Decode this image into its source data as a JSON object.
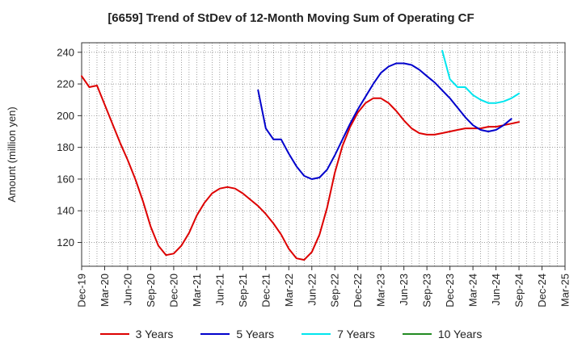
{
  "chart_data": {
    "type": "line",
    "title": "[6659]  Trend of StDev of 12-Month Moving Sum of Operating CF",
    "ylabel": "Amount (million yen)",
    "xlabel": "",
    "ylim": [
      105,
      246
    ],
    "xlim": [
      "2019-12",
      "2025-03"
    ],
    "grid": true,
    "legend_position": "bottom",
    "y_ticks": [
      120,
      140,
      160,
      180,
      200,
      220,
      240
    ],
    "x_ticks": [
      "Dec-19",
      "Mar-20",
      "Jun-20",
      "Sep-20",
      "Dec-20",
      "Mar-21",
      "Jun-21",
      "Sep-21",
      "Dec-21",
      "Mar-22",
      "Jun-22",
      "Sep-22",
      "Dec-22",
      "Mar-23",
      "Jun-23",
      "Sep-23",
      "Dec-23",
      "Mar-24",
      "Jun-24",
      "Sep-24",
      "Dec-24",
      "Mar-25"
    ],
    "series": [
      {
        "name": "3 Years",
        "color": "#dd0000",
        "start": "2019-12",
        "values": [
          225,
          218,
          219,
          207,
          195,
          183,
          172,
          160,
          146,
          130,
          118,
          112,
          113,
          118,
          126,
          137,
          145,
          151,
          154,
          155,
          154,
          151,
          147,
          143,
          138,
          132,
          125,
          116,
          110,
          109,
          114,
          125,
          142,
          164,
          181,
          193,
          202,
          208,
          211,
          211,
          208,
          203,
          197,
          192,
          189,
          188,
          188,
          189,
          190,
          191,
          192,
          192,
          192,
          193,
          193,
          194,
          195,
          196
        ]
      },
      {
        "name": "5 Years",
        "color": "#0000cc",
        "start": "2021-11",
        "values": [
          216,
          192,
          185,
          185,
          176,
          168,
          162,
          160,
          161,
          166,
          175,
          185,
          195,
          204,
          212,
          220,
          227,
          231,
          233,
          233,
          232,
          229,
          225,
          221,
          216,
          211,
          205,
          199,
          194,
          191,
          190,
          191,
          194,
          198
        ]
      },
      {
        "name": "7 Years",
        "color": "#00e5ee",
        "start": "2023-11",
        "values": [
          241,
          223,
          218,
          218,
          213,
          210,
          208,
          208,
          209,
          211,
          214
        ]
      },
      {
        "name": "10 Years",
        "color": "#228b22",
        "start": "2024-09",
        "values": []
      }
    ]
  }
}
